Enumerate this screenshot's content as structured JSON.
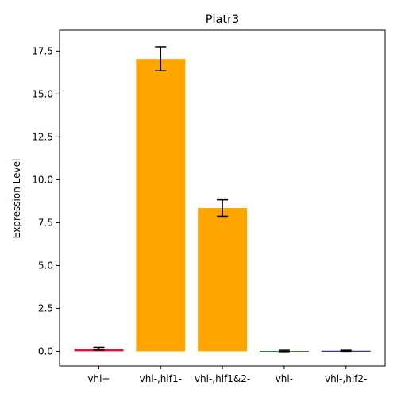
{
  "chart_data": {
    "type": "bar",
    "title": "Platr3",
    "xlabel": "",
    "ylabel": "Expression Level",
    "categories": [
      "vhl+",
      "vhl-,hif1-",
      "vhl-,hif1&2-",
      "vhl-",
      "vhl-,hif2-"
    ],
    "values": [
      0.15,
      17.05,
      8.35,
      0.02,
      0.03
    ],
    "errors": [
      0.08,
      0.7,
      0.48,
      0.04,
      0.03
    ],
    "colors": [
      "#dc143c",
      "#ffa500",
      "#ffa500",
      "#228b22",
      "#00008b"
    ],
    "ylim": [
      -0.86,
      18.72
    ],
    "yticks": [
      0.0,
      2.5,
      5.0,
      7.5,
      10.0,
      12.5,
      15.0,
      17.5
    ],
    "ytick_labels": [
      "0.0",
      "2.5",
      "5.0",
      "7.5",
      "10.0",
      "12.5",
      "15.0",
      "17.5"
    ],
    "grid": false
  }
}
